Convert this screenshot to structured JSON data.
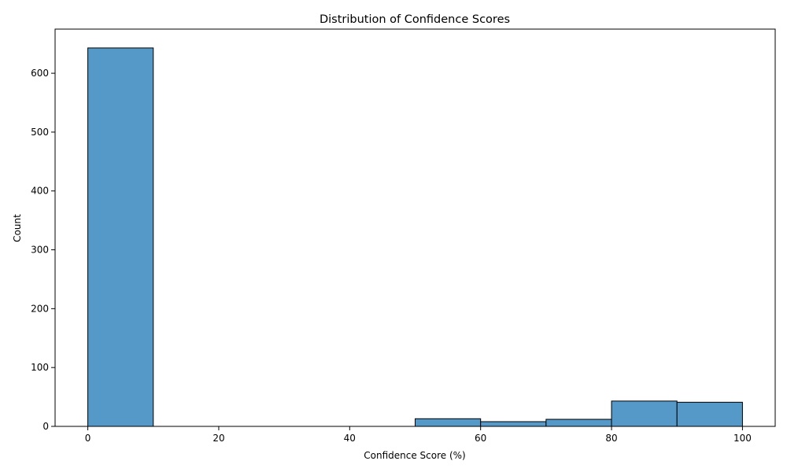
{
  "chart_data": {
    "type": "bar",
    "title": "Distribution of Confidence Scores",
    "xlabel": "Confidence Score (%)",
    "ylabel": "Count",
    "bins": [
      {
        "start": 0,
        "end": 10,
        "count": 643
      },
      {
        "start": 10,
        "end": 20,
        "count": 0
      },
      {
        "start": 20,
        "end": 30,
        "count": 0
      },
      {
        "start": 30,
        "end": 40,
        "count": 0
      },
      {
        "start": 40,
        "end": 50,
        "count": 0
      },
      {
        "start": 50,
        "end": 60,
        "count": 13
      },
      {
        "start": 60,
        "end": 70,
        "count": 8
      },
      {
        "start": 70,
        "end": 80,
        "count": 12
      },
      {
        "start": 80,
        "end": 90,
        "count": 43
      },
      {
        "start": 90,
        "end": 100,
        "count": 41
      }
    ],
    "xlim": [
      -5,
      105
    ],
    "ylim": [
      0,
      675
    ],
    "xticks": [
      0,
      20,
      40,
      60,
      80,
      100
    ],
    "yticks": [
      0,
      100,
      200,
      300,
      400,
      500,
      600
    ],
    "grid": false,
    "bar_color": "#5599c8",
    "edge_color": "#000000"
  }
}
